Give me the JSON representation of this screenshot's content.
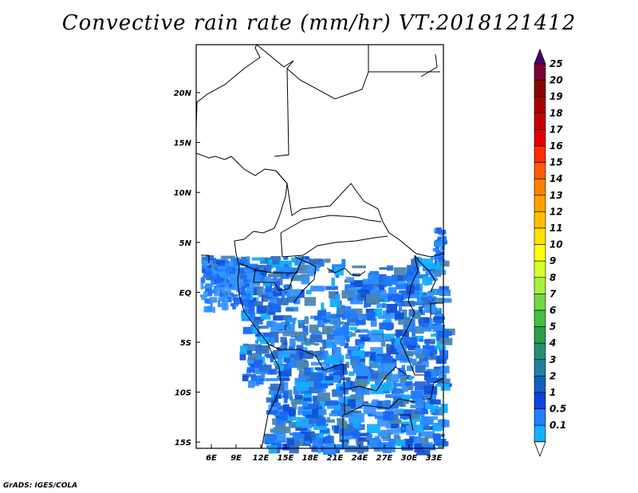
{
  "title": "Convective rain rate (mm/hr) VT:2018121412",
  "credit": "GrADS: IGES/COLA",
  "lon_ticks": [
    "6E",
    "9E",
    "12E",
    "15E",
    "18E",
    "21E",
    "24E",
    "27E",
    "30E",
    "33E"
  ],
  "lat_ticks": [
    "20N",
    "15N",
    "10N",
    "5N",
    "EQ",
    "5S",
    "10S",
    "15S"
  ],
  "colorbar": {
    "labels": [
      "25",
      "20",
      "19",
      "18",
      "17",
      "16",
      "15",
      "14",
      "13",
      "12",
      "11",
      "10",
      "9",
      "8",
      "7",
      "6",
      "5",
      "4",
      "3",
      "2",
      "1",
      "0.5",
      "0.1"
    ],
    "colors": [
      "#7a0030",
      "#8b0000",
      "#a80000",
      "#c80000",
      "#e00000",
      "#ff2a00",
      "#ff5a00",
      "#ff8000",
      "#ffa000",
      "#ffc000",
      "#ffe000",
      "#ffff00",
      "#d8ff30",
      "#a8f040",
      "#70d840",
      "#40c040",
      "#28a048",
      "#209070",
      "#2080a0",
      "#1060c0",
      "#1040e0",
      "#2080ff",
      "#10b0ff"
    ],
    "top_arrow_color": "#4b0070",
    "bottom_arrow_color": "#ffffff"
  }
}
